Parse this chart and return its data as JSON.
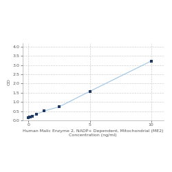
{
  "x": [
    0.0,
    0.078,
    0.156,
    0.313,
    0.625,
    1.25,
    2.5,
    5.0,
    10.0
  ],
  "y": [
    0.158,
    0.172,
    0.192,
    0.238,
    0.318,
    0.508,
    0.738,
    1.578,
    3.22
  ],
  "marker_color": "#1F3864",
  "line_color": "#9DC3E6",
  "xlabel_line1": "Human Malic Enzyme 2, NADP+ Dependent, Mitochondrial (ME2)",
  "xlabel_line2": "Concentration (ng/ml)",
  "ylabel": "OD",
  "xlim": [
    -0.5,
    11
  ],
  "ylim": [
    0,
    4.2
  ],
  "yticks": [
    0,
    0.5,
    1.0,
    1.5,
    2.0,
    2.5,
    3.0,
    3.5,
    4.0
  ],
  "xticks": [
    0,
    5,
    10
  ],
  "background_color": "#FFFFFF",
  "grid_color": "#CCCCCC",
  "label_fontsize": 4.5,
  "tick_fontsize": 4.5
}
